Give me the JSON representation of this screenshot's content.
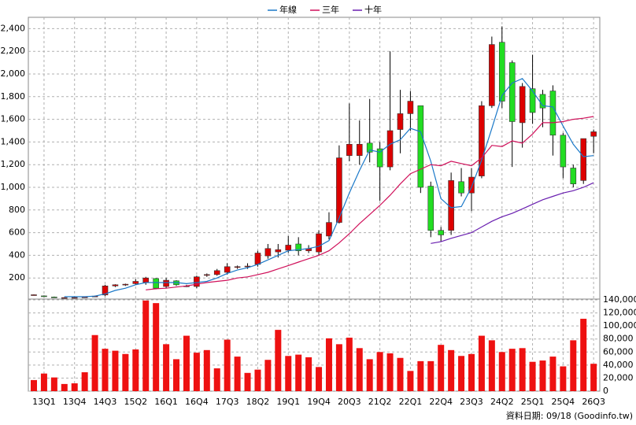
{
  "chart_data": [
    {
      "type": "candlestick",
      "up_color": "#dd0000",
      "down_color": "#22dd22",
      "grid": true,
      "legend": "top",
      "ylim": [
        0,
        2500
      ],
      "yticks": [
        200,
        400,
        600,
        800,
        {
          "value": 1000,
          "label": "1,000"
        },
        {
          "value": 1200,
          "label": "1,200"
        },
        {
          "value": 1400,
          "label": "1,400"
        },
        {
          "value": 1600,
          "label": "1,600"
        },
        {
          "value": 1800,
          "label": "1,800"
        },
        {
          "value": 2000,
          "label": "2,000"
        },
        {
          "value": 2200,
          "label": "2,200"
        },
        {
          "value": 2400,
          "label": "2,400"
        }
      ],
      "open": [
        50,
        42,
        32,
        26,
        25,
        30,
        38,
        50,
        130,
        140,
        150,
        160,
        195,
        125,
        175,
        130,
        125,
        225,
        230,
        250,
        295,
        300,
        320,
        395,
        430,
        445,
        500,
        440,
        430,
        570,
        690,
        1280,
        1280,
        1390,
        1340,
        1180,
        1510,
        1650,
        1720,
        1010,
        620,
        620,
        1050,
        950,
        1100,
        1720,
        2280,
        2100,
        1570,
        1870,
        1820,
        1850,
        1460,
        1170,
        1060,
        1450
      ],
      "high": [
        55,
        46,
        36,
        30,
        30,
        34,
        44,
        140,
        145,
        150,
        190,
        210,
        200,
        200,
        180,
        140,
        220,
        240,
        280,
        330,
        310,
        330,
        440,
        500,
        500,
        570,
        560,
        490,
        620,
        780,
        1370,
        1740,
        1590,
        1780,
        1400,
        2200,
        1860,
        1850,
        1720,
        1050,
        650,
        1130,
        1170,
        1170,
        1760,
        2330,
        2420,
        2120,
        1920,
        2170,
        1860,
        1900,
        1480,
        1200,
        1430,
        1510
      ],
      "low": [
        45,
        38,
        28,
        22,
        20,
        26,
        34,
        40,
        120,
        130,
        140,
        140,
        100,
        110,
        130,
        120,
        110,
        210,
        220,
        230,
        280,
        280,
        300,
        370,
        380,
        420,
        400,
        420,
        400,
        540,
        680,
        1230,
        1200,
        1220,
        880,
        1150,
        1300,
        1500,
        950,
        560,
        520,
        580,
        920,
        790,
        1080,
        1700,
        1700,
        1180,
        1350,
        1560,
        1530,
        1280,
        1080,
        1000,
        1030,
        1300
      ],
      "close": [
        52,
        40,
        30,
        27,
        28,
        32,
        40,
        130,
        140,
        145,
        170,
        200,
        110,
        180,
        140,
        130,
        210,
        230,
        265,
        300,
        300,
        305,
        420,
        460,
        450,
        490,
        440,
        460,
        590,
        690,
        1260,
        1380,
        1380,
        1310,
        1180,
        1500,
        1650,
        1760,
        1000,
        620,
        580,
        1060,
        950,
        1090,
        1720,
        2260,
        1760,
        1580,
        1890,
        1660,
        1700,
        1460,
        1180,
        1030,
        1430,
        1490
      ],
      "series": [
        {
          "name": "年線",
          "color": "#1a78c8",
          "values": [
            null,
            null,
            null,
            35,
            35,
            35,
            40,
            60,
            90,
            110,
            140,
            160,
            160,
            160,
            160,
            150,
            160,
            170,
            200,
            240,
            270,
            290,
            320,
            360,
            400,
            440,
            450,
            460,
            480,
            530,
            730,
            950,
            1150,
            1330,
            1310,
            1380,
            1420,
            1520,
            1490,
            1230,
            900,
            820,
            830,
            1000,
            1240,
            1520,
            1810,
            1920,
            1960,
            1850,
            1720,
            1710,
            1540,
            1380,
            1270,
            1280
          ]
        },
        {
          "name": "三年",
          "color": "#d0105a",
          "values": [
            null,
            null,
            null,
            null,
            null,
            null,
            null,
            null,
            null,
            null,
            null,
            95,
            105,
            110,
            120,
            130,
            145,
            160,
            170,
            180,
            200,
            210,
            230,
            250,
            280,
            310,
            340,
            370,
            400,
            440,
            510,
            590,
            680,
            760,
            840,
            930,
            1030,
            1120,
            1160,
            1200,
            1190,
            1230,
            1210,
            1190,
            1260,
            1370,
            1360,
            1410,
            1390,
            1470,
            1570,
            1570,
            1580,
            1600,
            1610,
            1625
          ]
        },
        {
          "name": "十年",
          "color": "#6a1fb0",
          "values": [
            null,
            null,
            null,
            null,
            null,
            null,
            null,
            null,
            null,
            null,
            null,
            null,
            null,
            null,
            null,
            null,
            null,
            null,
            null,
            null,
            null,
            null,
            null,
            null,
            null,
            null,
            null,
            null,
            null,
            null,
            null,
            null,
            null,
            null,
            null,
            null,
            null,
            null,
            null,
            505,
            520,
            550,
            575,
            600,
            650,
            700,
            740,
            770,
            810,
            850,
            890,
            920,
            950,
            970,
            1000,
            1040
          ]
        }
      ]
    },
    {
      "type": "bar",
      "color": "#ee1111",
      "grid": true,
      "categories": [
        null,
        "13Q1",
        null,
        null,
        "13Q4",
        null,
        null,
        "14Q3",
        null,
        null,
        "15Q2",
        null,
        null,
        "16Q1",
        null,
        null,
        "16Q4",
        null,
        null,
        "17Q3",
        null,
        null,
        "18Q2",
        null,
        null,
        "19Q1",
        null,
        null,
        "19Q4",
        null,
        null,
        "20Q3",
        null,
        null,
        "21Q2",
        null,
        null,
        "22Q1",
        null,
        null,
        "22Q4",
        null,
        null,
        "23Q3",
        null,
        null,
        "24Q2",
        null,
        null,
        "25Q1",
        null,
        null,
        "25Q4",
        null,
        null,
        "26Q3"
      ],
      "values": [
        17000,
        27000,
        21000,
        11000,
        12000,
        29000,
        86000,
        65000,
        62000,
        57000,
        64000,
        139000,
        135000,
        72000,
        49000,
        85000,
        59000,
        63000,
        35000,
        79000,
        53000,
        28000,
        33000,
        48000,
        94000,
        54000,
        56000,
        52000,
        37000,
        81000,
        72000,
        82000,
        66000,
        49000,
        60000,
        58000,
        51000,
        31000,
        46000,
        46000,
        71000,
        63000,
        54000,
        57000,
        85000,
        78000,
        60000,
        65000,
        66000,
        45000,
        47000,
        53000,
        38000,
        78000,
        111000,
        42000
      ],
      "ylim": [
        0,
        140000
      ],
      "yticks": [
        0,
        {
          "value": 20000,
          "label": "20,000"
        },
        {
          "value": 40000,
          "label": "40,000"
        },
        {
          "value": 60000,
          "label": "60,000"
        },
        {
          "value": 80000,
          "label": "80,000"
        },
        {
          "value": 100000,
          "label": "100,000"
        },
        {
          "value": 120000,
          "label": "120,000"
        },
        {
          "value": 140000,
          "label": "140,000"
        }
      ]
    }
  ],
  "source_note": "資料日期: 09/18 (Goodinfo.tw)"
}
